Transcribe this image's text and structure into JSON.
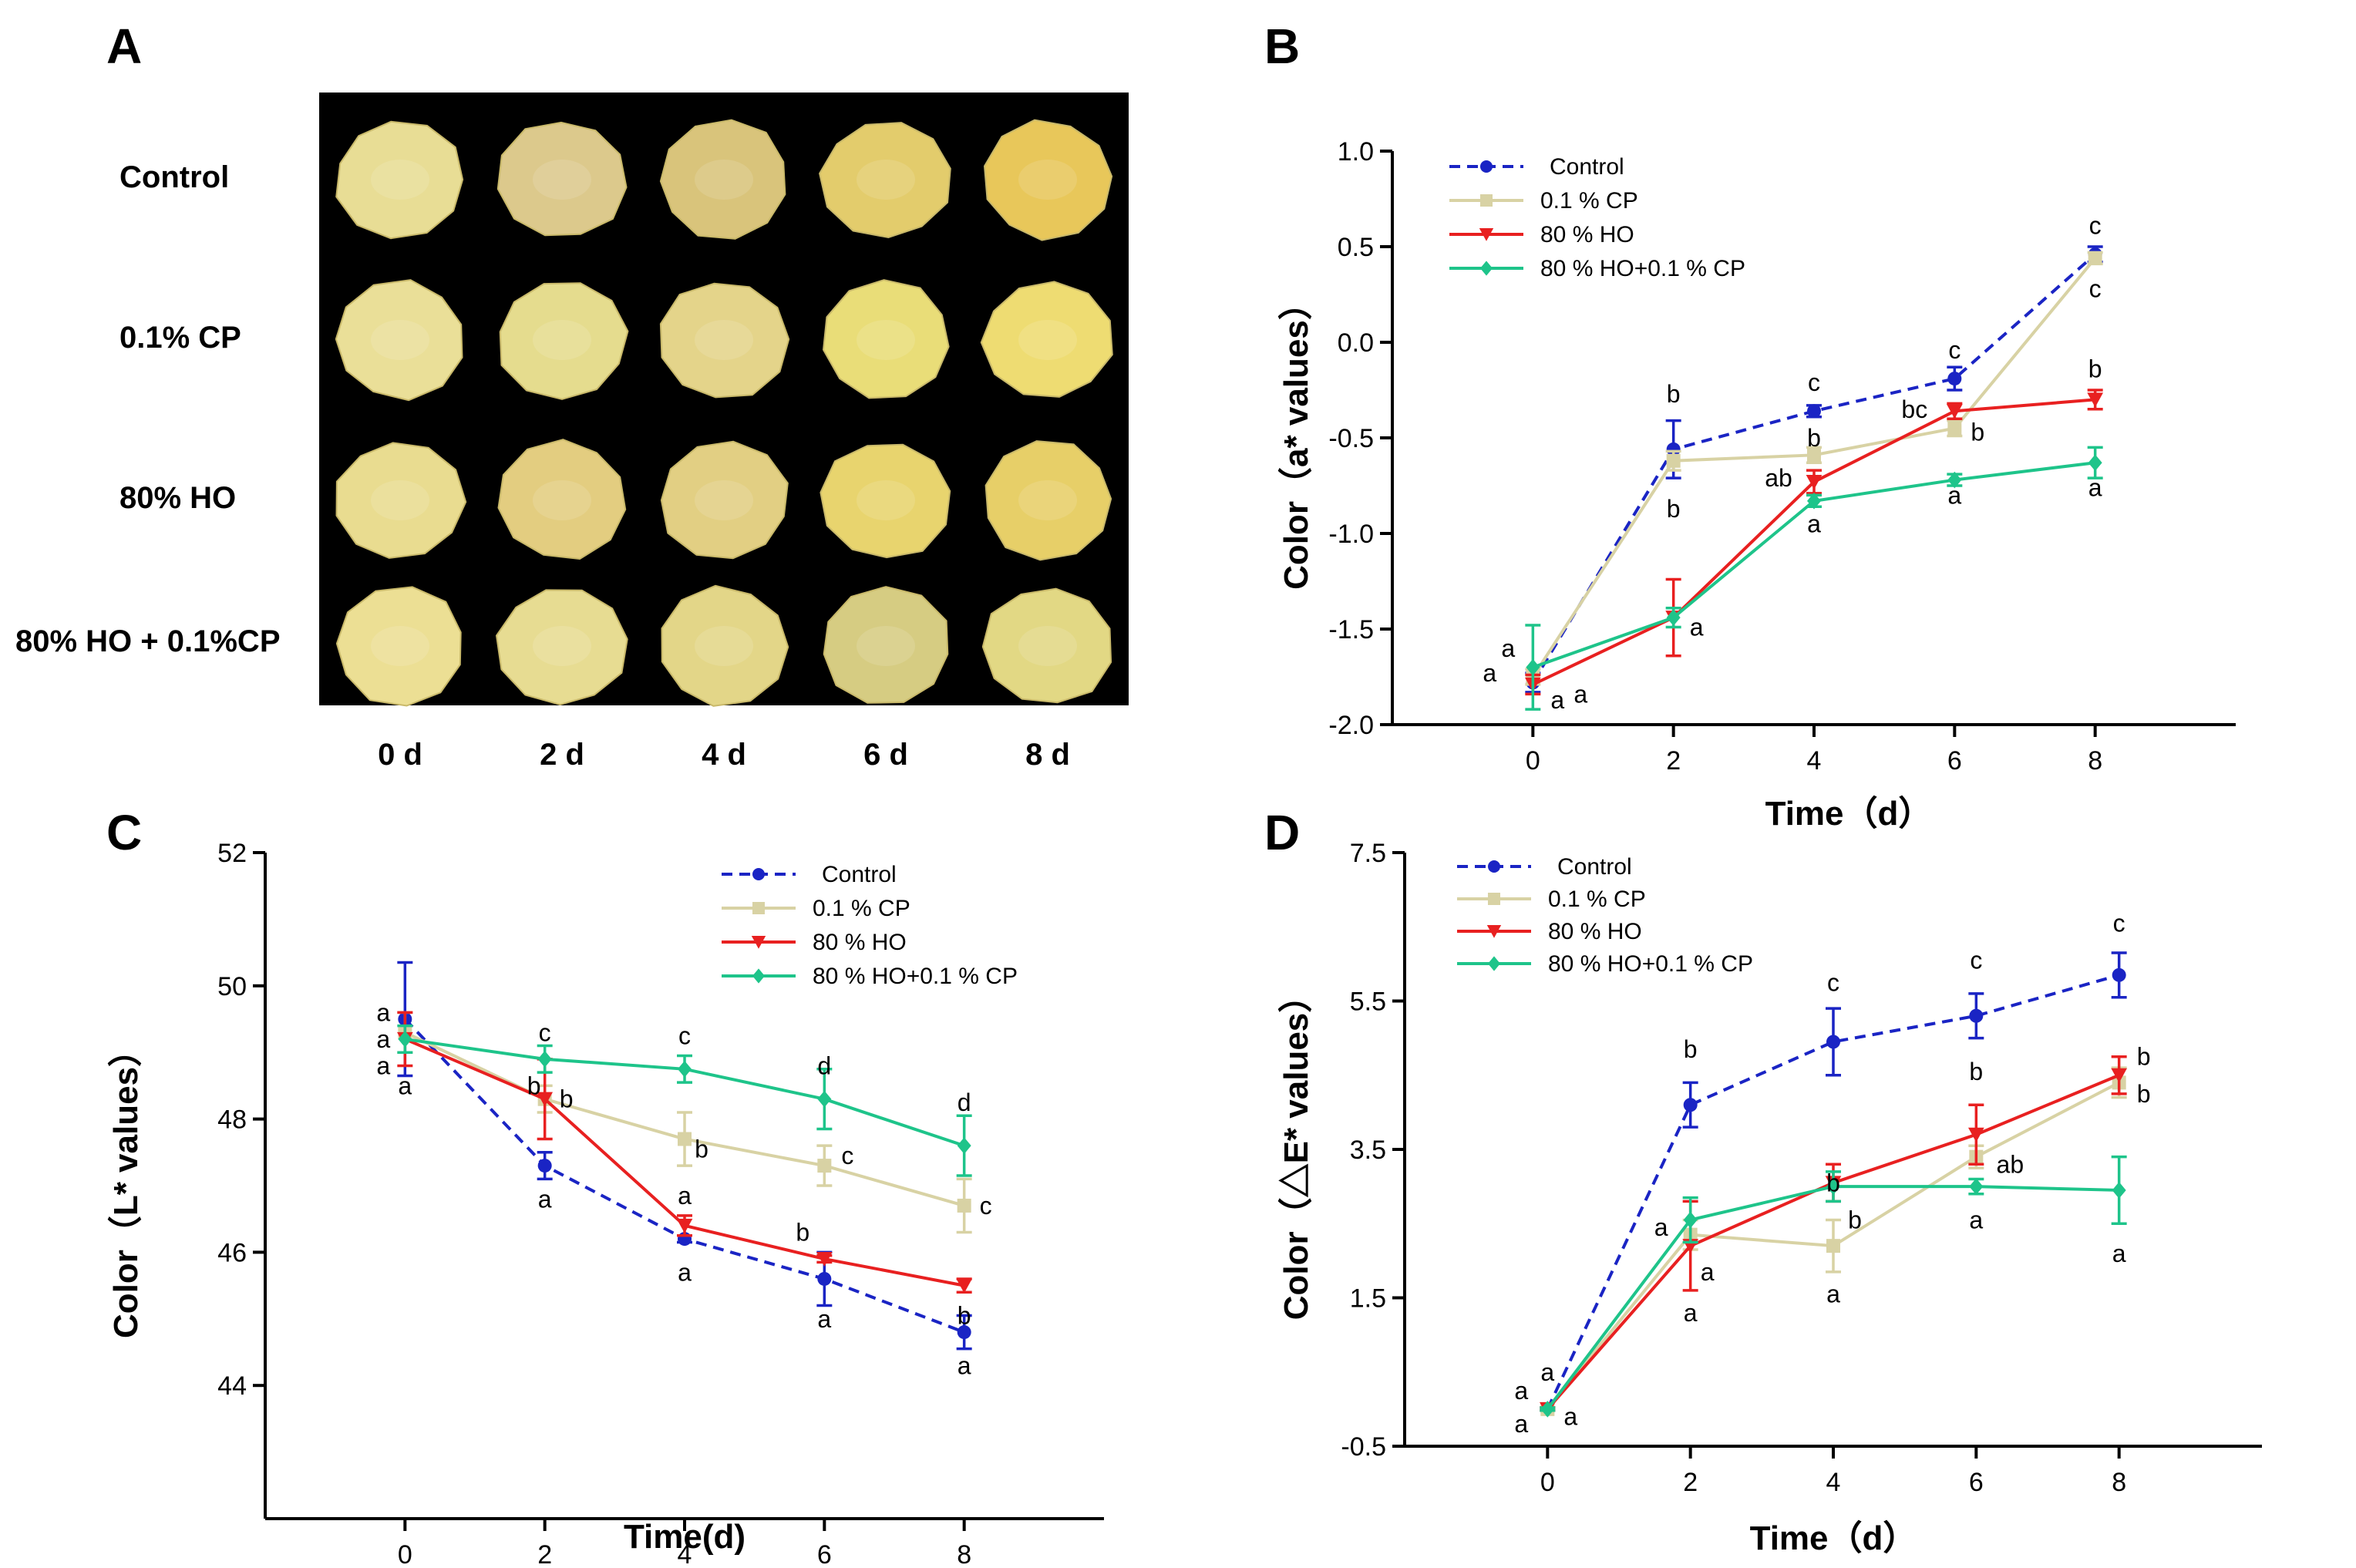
{
  "panel_a": {
    "letter": "A",
    "row_labels": [
      "Control",
      "0.1% CP",
      "80% HO",
      "80% HO + 0.1%CP"
    ],
    "day_labels": [
      "0 d",
      "2 d",
      "4 d",
      "6 d",
      "8 d"
    ],
    "slice_colors": [
      [
        "#e8dd95",
        "#dcc98c",
        "#d9c47b",
        "#e3cc6c",
        "#e8c75a"
      ],
      [
        "#eadf98",
        "#e5dc8e",
        "#e4d48a",
        "#e9dd78",
        "#eedc72"
      ],
      [
        "#e9dc90",
        "#e3cd80",
        "#e2cf83",
        "#e8d46e",
        "#e7cf68"
      ],
      [
        "#ecdf94",
        "#e7dc92",
        "#e3d688",
        "#d6cc82",
        "#e2d884"
      ]
    ],
    "background_color": "#000000"
  },
  "series_style": [
    {
      "name": "Control",
      "color": "#1a24c4",
      "marker": "circle",
      "dashed": true
    },
    {
      "name": "0.1 % CP",
      "color": "#d8d2a4",
      "marker": "square",
      "dashed": false
    },
    {
      "name": "80 % HO",
      "color": "#e82020",
      "marker": "triangle-down",
      "dashed": false
    },
    {
      "name": "80 % HO+0.1 % CP",
      "color": "#1ec48a",
      "marker": "diamond",
      "dashed": false
    }
  ],
  "chart_data": [
    {
      "panel": "B",
      "type": "line",
      "title": "",
      "xlabel": "Time（d）",
      "ylabel": "Color（a* values）",
      "x": [
        0,
        2,
        4,
        6,
        8
      ],
      "xticks": [
        "0",
        "2",
        "4",
        "6",
        "8"
      ],
      "ylim": [
        -2.0,
        1.0
      ],
      "yticks": [
        "-2.0",
        "-1.5",
        "-1.0",
        "-0.5",
        "0.0",
        "0.5",
        "1.0"
      ],
      "ytick_values": [
        -2.0,
        -1.5,
        -1.0,
        -0.5,
        0.0,
        0.5,
        1.0
      ],
      "legend": "top-left",
      "series": [
        {
          "name": "Control",
          "values": [
            -1.78,
            -0.56,
            -0.36,
            -0.19,
            0.46
          ],
          "errors": [
            0.05,
            0.15,
            0.03,
            0.06,
            0.04
          ]
        },
        {
          "name": "0.1 % CP",
          "values": [
            -1.75,
            -0.62,
            -0.59,
            -0.45,
            0.44
          ],
          "errors": [
            0.04,
            0.05,
            0.04,
            0.04,
            0.03
          ]
        },
        {
          "name": "80 % HO",
          "values": [
            -1.79,
            -1.44,
            -0.73,
            -0.36,
            -0.3
          ],
          "errors": [
            0.05,
            0.2,
            0.06,
            0.04,
            0.05
          ]
        },
        {
          "name": "80 % HO+0.1 % CP",
          "values": [
            -1.7,
            -1.44,
            -0.83,
            -0.72,
            -0.63
          ],
          "errors": [
            0.22,
            0.05,
            0.03,
            0.03,
            0.08
          ]
        }
      ],
      "annotations": [
        {
          "x": 0,
          "y": -1.6,
          "dx": -32,
          "text": "a"
        },
        {
          "x": 0,
          "y": -1.73,
          "dx": -56,
          "text": "a"
        },
        {
          "x": 0,
          "y": -1.87,
          "dx": 32,
          "text": "a"
        },
        {
          "x": 0,
          "y": -1.84,
          "dx": 62,
          "text": "a"
        },
        {
          "x": 2,
          "y": -0.27,
          "dx": 0,
          "text": "b"
        },
        {
          "x": 2,
          "y": -0.87,
          "dx": 0,
          "text": "b"
        },
        {
          "x": 2,
          "y": -1.49,
          "dx": 30,
          "text": "a"
        },
        {
          "x": 4,
          "y": -0.21,
          "dx": 0,
          "text": "c"
        },
        {
          "x": 4,
          "y": -0.5,
          "dx": 0,
          "text": "b"
        },
        {
          "x": 4,
          "y": -0.71,
          "dx": -46,
          "text": "ab"
        },
        {
          "x": 4,
          "y": -0.95,
          "dx": 0,
          "text": "a"
        },
        {
          "x": 6,
          "y": -0.04,
          "dx": 0,
          "text": "c"
        },
        {
          "x": 6,
          "y": -0.35,
          "dx": -52,
          "text": "bc"
        },
        {
          "x": 6,
          "y": -0.47,
          "dx": 30,
          "text": "b"
        },
        {
          "x": 6,
          "y": -0.8,
          "dx": 0,
          "text": "a"
        },
        {
          "x": 8,
          "y": 0.61,
          "dx": 0,
          "text": "c"
        },
        {
          "x": 8,
          "y": 0.28,
          "dx": 0,
          "text": "c"
        },
        {
          "x": 8,
          "y": -0.14,
          "dx": 0,
          "text": "b"
        },
        {
          "x": 8,
          "y": -0.76,
          "dx": 0,
          "text": "a"
        }
      ]
    },
    {
      "panel": "C",
      "type": "line",
      "title": "",
      "xlabel": "Time(d)",
      "ylabel": "Color（L* values）",
      "x": [
        0,
        2,
        4,
        6,
        8
      ],
      "xticks": [
        "0",
        "2",
        "4",
        "6",
        "8"
      ],
      "ylim": [
        42,
        52
      ],
      "yticks": [
        "44",
        "46",
        "48",
        "50",
        "52"
      ],
      "ytick_values": [
        44,
        46,
        48,
        50,
        52
      ],
      "legend": "top-right",
      "series": [
        {
          "name": "Control",
          "values": [
            49.5,
            47.3,
            46.2,
            45.6,
            44.8
          ],
          "errors": [
            0.85,
            0.2,
            0.05,
            0.4,
            0.25
          ]
        },
        {
          "name": "0.1 % CP",
          "values": [
            49.3,
            48.3,
            47.7,
            47.3,
            46.7
          ],
          "errors": [
            0.3,
            0.2,
            0.4,
            0.3,
            0.4
          ]
        },
        {
          "name": "80 % HO",
          "values": [
            49.2,
            48.3,
            46.4,
            45.9,
            45.5
          ],
          "errors": [
            0.4,
            0.6,
            0.15,
            0.05,
            0.1
          ]
        },
        {
          "name": "80 % HO+0.1 % CP",
          "values": [
            49.2,
            48.9,
            48.75,
            48.3,
            47.6
          ],
          "errors": [
            0.2,
            0.2,
            0.2,
            0.45,
            0.45
          ]
        }
      ],
      "annotations": [
        {
          "x": 0,
          "y": 49.6,
          "dx": -28,
          "text": "a"
        },
        {
          "x": 0,
          "y": 49.2,
          "dx": -28,
          "text": "a"
        },
        {
          "x": 0,
          "y": 48.8,
          "dx": -28,
          "text": "a"
        },
        {
          "x": 0,
          "y": 48.5,
          "dx": 0,
          "text": "a"
        },
        {
          "x": 2,
          "y": 49.3,
          "dx": 0,
          "text": "c"
        },
        {
          "x": 2,
          "y": 48.5,
          "dx": -14,
          "text": "b"
        },
        {
          "x": 2,
          "y": 48.3,
          "dx": 28,
          "text": "b"
        },
        {
          "x": 2,
          "y": 46.8,
          "dx": 0,
          "text": "a"
        },
        {
          "x": 4,
          "y": 49.25,
          "dx": 0,
          "text": "c"
        },
        {
          "x": 4,
          "y": 47.55,
          "dx": 22,
          "text": "b"
        },
        {
          "x": 4,
          "y": 46.85,
          "dx": 0,
          "text": "a"
        },
        {
          "x": 4,
          "y": 45.7,
          "dx": 0,
          "text": "a"
        },
        {
          "x": 6,
          "y": 48.8,
          "dx": 0,
          "text": "d"
        },
        {
          "x": 6,
          "y": 47.45,
          "dx": 30,
          "text": "c"
        },
        {
          "x": 6,
          "y": 46.3,
          "dx": -28,
          "text": "b"
        },
        {
          "x": 6,
          "y": 45.0,
          "dx": 0,
          "text": "a"
        },
        {
          "x": 8,
          "y": 48.25,
          "dx": 0,
          "text": "d"
        },
        {
          "x": 8,
          "y": 46.7,
          "dx": 28,
          "text": "c"
        },
        {
          "x": 8,
          "y": 45.05,
          "dx": 0,
          "text": "b"
        },
        {
          "x": 8,
          "y": 44.3,
          "dx": 0,
          "text": "a"
        }
      ]
    },
    {
      "panel": "D",
      "type": "line",
      "title": "",
      "xlabel": "Time（d）",
      "ylabel": "Color（△E* values）",
      "x": [
        0,
        2,
        4,
        6,
        8
      ],
      "xticks": [
        "0",
        "2",
        "4",
        "6",
        "8"
      ],
      "ylim": [
        -0.5,
        7.5
      ],
      "yticks": [
        "-0.5",
        "1.5",
        "3.5",
        "5.5",
        "7.5"
      ],
      "ytick_values": [
        -0.5,
        1.5,
        3.5,
        5.5,
        7.5
      ],
      "legend": "top-left",
      "series": [
        {
          "name": "Control",
          "values": [
            0.0,
            4.1,
            4.95,
            5.3,
            5.85
          ],
          "errors": [
            0.02,
            0.3,
            0.45,
            0.3,
            0.3
          ]
        },
        {
          "name": "0.1 % CP",
          "values": [
            0.0,
            2.35,
            2.2,
            3.4,
            4.4
          ],
          "errors": [
            0.02,
            0.2,
            0.35,
            0.15,
            0.2
          ]
        },
        {
          "name": "80 % HO",
          "values": [
            0.0,
            2.2,
            3.05,
            3.7,
            4.5
          ],
          "errors": [
            0.02,
            0.6,
            0.25,
            0.4,
            0.25
          ]
        },
        {
          "name": "80 % HO+0.1 % CP",
          "values": [
            0.0,
            2.55,
            3.0,
            3.0,
            2.95
          ],
          "errors": [
            0.02,
            0.3,
            0.2,
            0.1,
            0.45
          ]
        }
      ],
      "annotations": [
        {
          "x": 0,
          "y": 0.5,
          "dx": 0,
          "text": "a"
        },
        {
          "x": 0,
          "y": 0.25,
          "dx": -34,
          "text": "a"
        },
        {
          "x": 0,
          "y": -0.2,
          "dx": -34,
          "text": "a"
        },
        {
          "x": 0,
          "y": -0.1,
          "dx": 30,
          "text": "a"
        },
        {
          "x": 2,
          "y": 4.85,
          "dx": 0,
          "text": "b"
        },
        {
          "x": 2,
          "y": 2.45,
          "dx": -38,
          "text": "a"
        },
        {
          "x": 2,
          "y": 1.85,
          "dx": 22,
          "text": "a"
        },
        {
          "x": 2,
          "y": 1.3,
          "dx": 0,
          "text": "a"
        },
        {
          "x": 4,
          "y": 5.75,
          "dx": 0,
          "text": "c"
        },
        {
          "x": 4,
          "y": 3.05,
          "dx": 0,
          "text": "b"
        },
        {
          "x": 4,
          "y": 2.55,
          "dx": 28,
          "text": "b"
        },
        {
          "x": 4,
          "y": 1.55,
          "dx": 0,
          "text": "a"
        },
        {
          "x": 6,
          "y": 6.05,
          "dx": 0,
          "text": "c"
        },
        {
          "x": 6,
          "y": 4.55,
          "dx": 0,
          "text": "b"
        },
        {
          "x": 6,
          "y": 3.3,
          "dx": 44,
          "text": "ab"
        },
        {
          "x": 6,
          "y": 2.55,
          "dx": 0,
          "text": "a"
        },
        {
          "x": 8,
          "y": 6.55,
          "dx": 0,
          "text": "c"
        },
        {
          "x": 8,
          "y": 4.75,
          "dx": 32,
          "text": "b"
        },
        {
          "x": 8,
          "y": 4.25,
          "dx": 32,
          "text": "b"
        },
        {
          "x": 8,
          "y": 2.1,
          "dx": 0,
          "text": "a"
        }
      ]
    }
  ]
}
